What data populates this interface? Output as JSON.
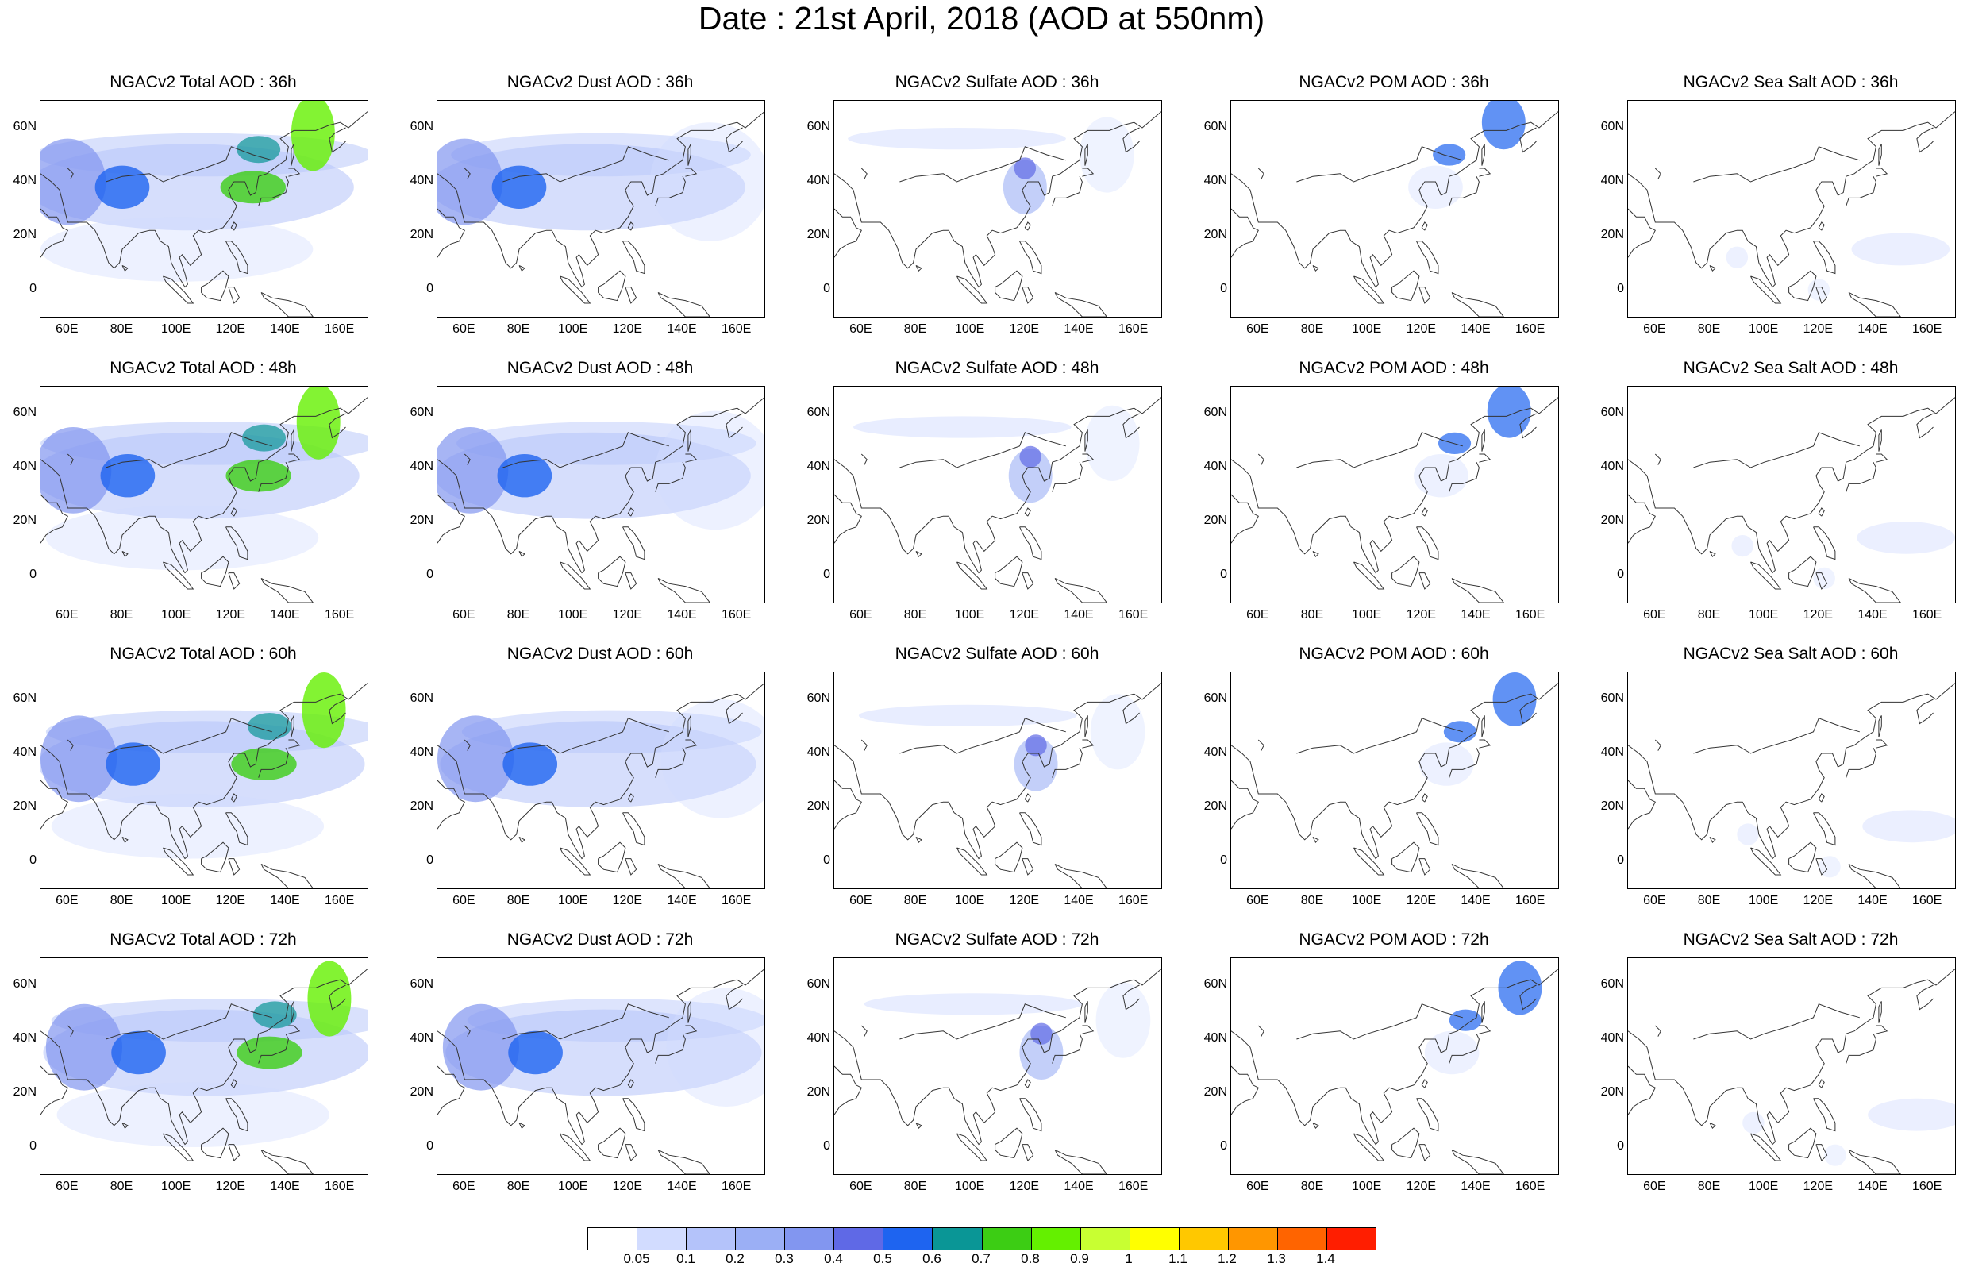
{
  "title": "Date : 21st April, 2018 (AOD at 550nm)",
  "lat_labels": [
    "60N",
    "40N",
    "20N",
    "0"
  ],
  "lon_labels": [
    "60E",
    "80E",
    "100E",
    "120E",
    "140E",
    "160E"
  ],
  "panels": [
    [
      "NGACv2 Total AOD : 36h",
      "NGACv2 Dust AOD : 36h",
      "NGACv2 Sulfate AOD : 36h",
      "NGACv2 POM AOD : 36h",
      "NGACv2 Sea Salt AOD : 36h"
    ],
    [
      "NGACv2 Total AOD : 48h",
      "NGACv2 Dust AOD : 48h",
      "NGACv2 Sulfate AOD : 48h",
      "NGACv2 POM AOD : 48h",
      "NGACv2 Sea Salt AOD : 48h"
    ],
    [
      "NGACv2 Total AOD : 60h",
      "NGACv2 Dust AOD : 60h",
      "NGACv2 Sulfate AOD : 60h",
      "NGACv2 POM AOD : 60h",
      "NGACv2 Sea Salt AOD : 60h"
    ],
    [
      "NGACv2 Total AOD : 72h",
      "NGACv2 Dust AOD : 72h",
      "NGACv2 Sulfate AOD : 72h",
      "NGACv2 POM AOD : 72h",
      "NGACv2 Sea Salt  AOD : 72h"
    ]
  ],
  "colorbar": {
    "labels": [
      "0.05",
      "0.1",
      "0.2",
      "0.3",
      "0.4",
      "0.5",
      "0.6",
      "0.7",
      "0.8",
      "0.9",
      "1",
      "1.1",
      "1.2",
      "1.3",
      "1.4"
    ],
    "colors": [
      "#ffffff",
      "#d2dcff",
      "#b4c3fa",
      "#9baff5",
      "#8296f0",
      "#5f69e6",
      "#1e64f0",
      "#0a9696",
      "#3ccd14",
      "#64f000",
      "#c8ff32",
      "#ffff00",
      "#ffc800",
      "#ff9600",
      "#ff6400",
      "#ff1e00"
    ]
  }
}
